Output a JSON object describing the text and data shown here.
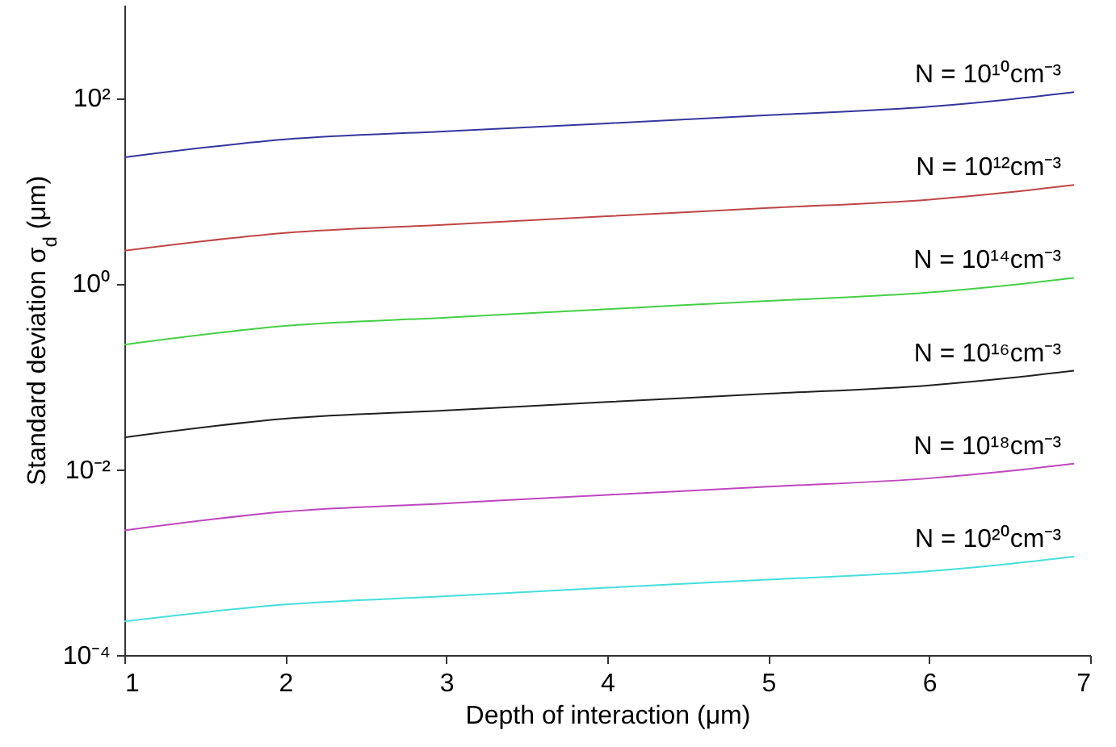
{
  "chart_data": {
    "type": "line",
    "xlabel": "Depth of interaction (μm)",
    "ylabel": "Standard deviation σ$_{d}$ (μm)",
    "x": [
      1,
      2,
      3,
      4,
      5,
      6,
      6.5,
      6.9
    ],
    "series": [
      {
        "name": "N = 10¹⁰cm⁻³",
        "color": "#3535a0",
        "values": [
          22.8,
          35.7,
          43.6,
          53,
          65,
          80,
          96,
          115
        ]
      },
      {
        "name": "N = 10¹²cm⁻³",
        "color": "#c04545",
        "values": [
          2.25,
          3.5,
          4.3,
          5.3,
          6.5,
          8,
          9.6,
          11.5
        ]
      },
      {
        "name": "N = 10¹⁴cm⁻³",
        "color": "#45d045",
        "values": [
          0.22,
          0.35,
          0.43,
          0.53,
          0.65,
          0.8,
          0.96,
          1.15
        ]
      },
      {
        "name": "N = 10¹⁶cm⁻³",
        "color": "#202020",
        "values": [
          0.022,
          0.035,
          0.043,
          0.053,
          0.065,
          0.08,
          0.096,
          0.115
        ]
      },
      {
        "name": "N = 10¹⁸cm⁻³",
        "color": "#c045c0",
        "values": [
          0.0022,
          0.0035,
          0.0043,
          0.0053,
          0.0065,
          0.008,
          0.0096,
          0.0115
        ]
      },
      {
        "name": "N = 10²⁰cm⁻³",
        "color": "#45dede",
        "values": [
          0.00023,
          0.00035,
          0.00043,
          0.00053,
          0.00065,
          0.0008,
          0.00096,
          0.00115
        ]
      }
    ],
    "xlim": [
      1,
      7
    ],
    "xticks": [
      1,
      2,
      3,
      4,
      5,
      6,
      7
    ],
    "ylim": [
      0.0001,
      1000
    ],
    "yticks": [
      {
        "value": 0.0001,
        "label": "10⁻⁴"
      },
      {
        "value": 0.01,
        "label": "10⁻²"
      },
      {
        "value": 1,
        "label": "10⁰"
      },
      {
        "value": 100,
        "label": "10²"
      }
    ],
    "log": true,
    "grid": false
  }
}
